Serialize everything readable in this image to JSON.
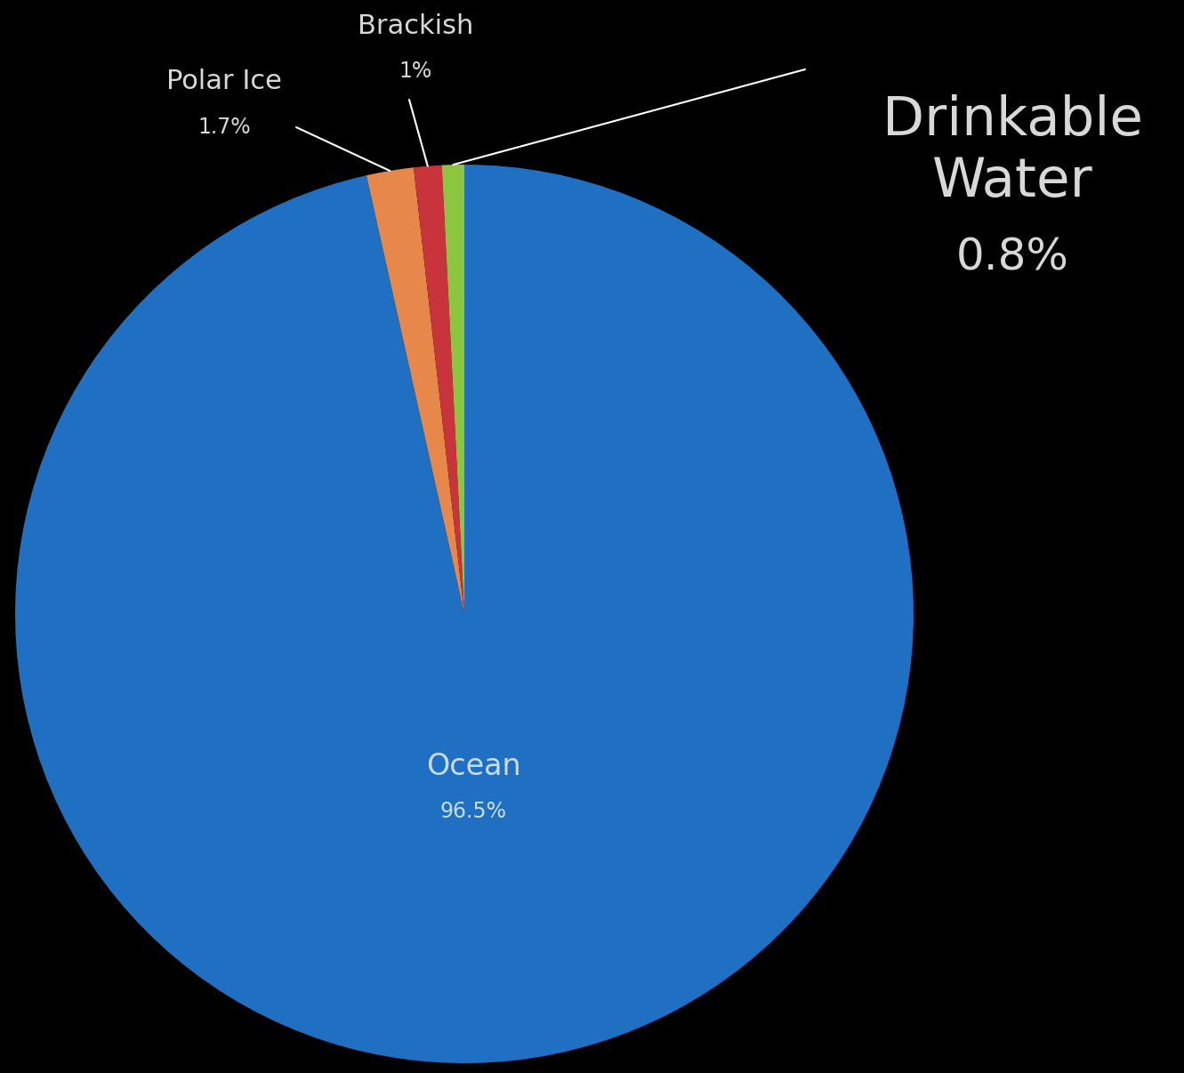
{
  "chart_data": {
    "type": "pie",
    "categories": [
      "Ocean",
      "Polar Ice",
      "Brackish",
      "Drinkable Water"
    ],
    "values": [
      96.5,
      1.7,
      1,
      0.8
    ],
    "value_labels": [
      "96.5%",
      "1.7%",
      "1%",
      "0.8%"
    ],
    "colors": [
      "#1f6fc2",
      "#e8874a",
      "#c9343c",
      "#8cc63f"
    ]
  }
}
